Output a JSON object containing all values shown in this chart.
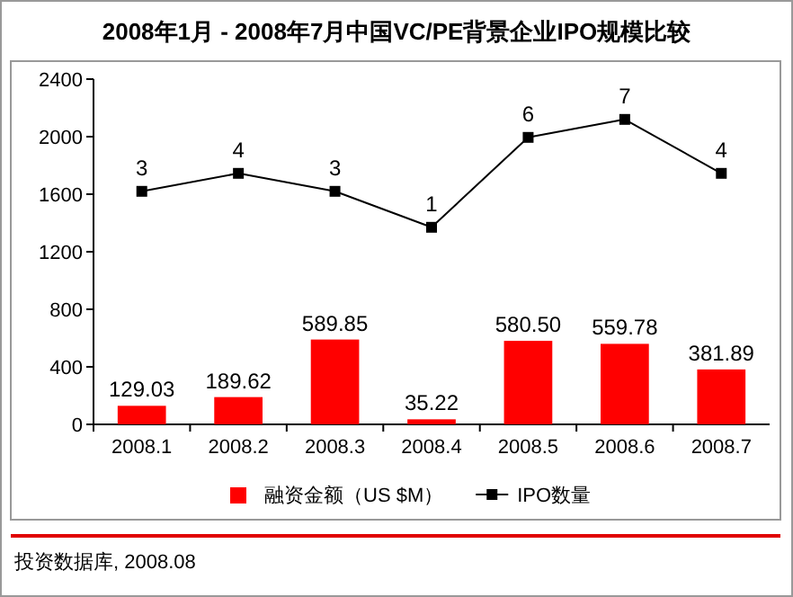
{
  "chart_data": {
    "type": "bar",
    "title": "2008年1月 - 2008年7月中国VC/PE背景企业IPO规模比较",
    "categories": [
      "2008.1",
      "2008.2",
      "2008.3",
      "2008.4",
      "2008.5",
      "2008.6",
      "2008.7"
    ],
    "series": [
      {
        "name": "融资金额（US $M）",
        "color": "#ff0000",
        "values": [
          129.03,
          189.62,
          589.85,
          35.22,
          580.5,
          559.78,
          381.89
        ],
        "value_labels": [
          "129.03",
          "189.62",
          "589.85",
          "35.22",
          "580.50",
          "559.78",
          "381.89"
        ]
      },
      {
        "name": "IPO数量",
        "type": "line",
        "axis": "y2",
        "color": "#000000",
        "marker": "square",
        "values": [
          3,
          4,
          3,
          1,
          6,
          7,
          4
        ],
        "value_labels": [
          "3",
          "4",
          "3",
          "1",
          "6",
          "7",
          "4"
        ]
      }
    ],
    "ylim": [
      0,
      2400
    ],
    "yticks": [
      0,
      400,
      800,
      1200,
      1600,
      2000,
      2400
    ],
    "y2lim": [
      -9.96,
      9.24
    ],
    "legend": "bottom",
    "grid": false,
    "annotations": [
      "投资数据库, 2008.08"
    ]
  }
}
